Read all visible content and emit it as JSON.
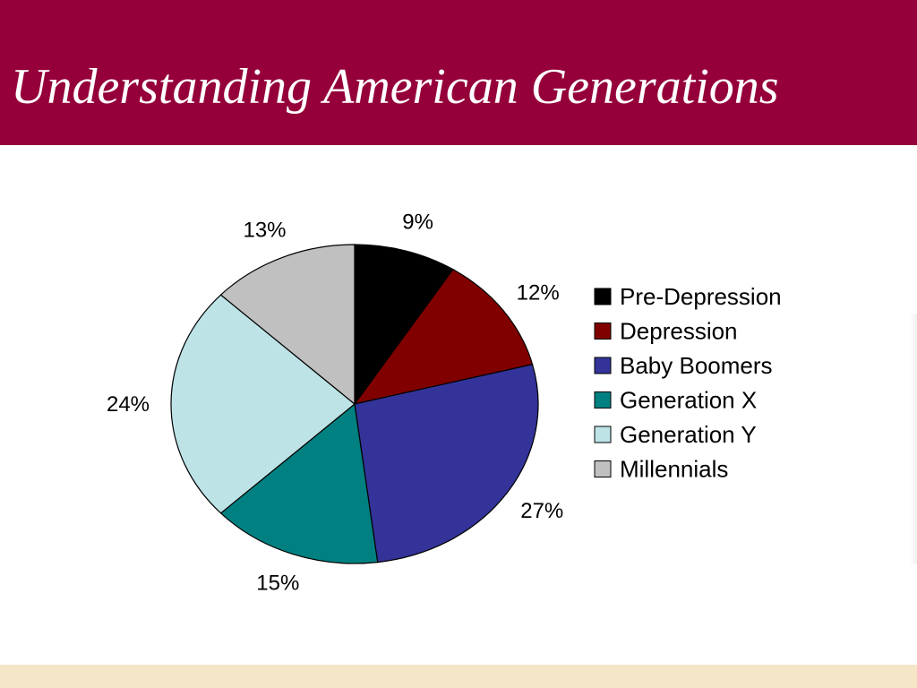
{
  "slide": {
    "title": "Understanding American Generations",
    "title_bar_color": "#95003a",
    "footer_color": "#f5e6c8"
  },
  "chart_data": {
    "type": "pie",
    "start": "12 o'clock",
    "direction": "clockwise",
    "legend_position": "right",
    "slices": [
      {
        "label": "Pre-Depression",
        "value": 9,
        "display": "9%",
        "color": "#000000"
      },
      {
        "label": "Depression",
        "value": 12,
        "display": "12%",
        "color": "#800000"
      },
      {
        "label": "Baby Boomers",
        "value": 27,
        "display": "27%",
        "color": "#333399"
      },
      {
        "label": "Generation X",
        "value": 15,
        "display": "15%",
        "color": "#008080"
      },
      {
        "label": "Generation Y",
        "value": 24,
        "display": "24%",
        "color": "#bde3e6"
      },
      {
        "label": "Millennials",
        "value": 13,
        "display": "13%",
        "color": "#c0c0c0"
      }
    ]
  }
}
